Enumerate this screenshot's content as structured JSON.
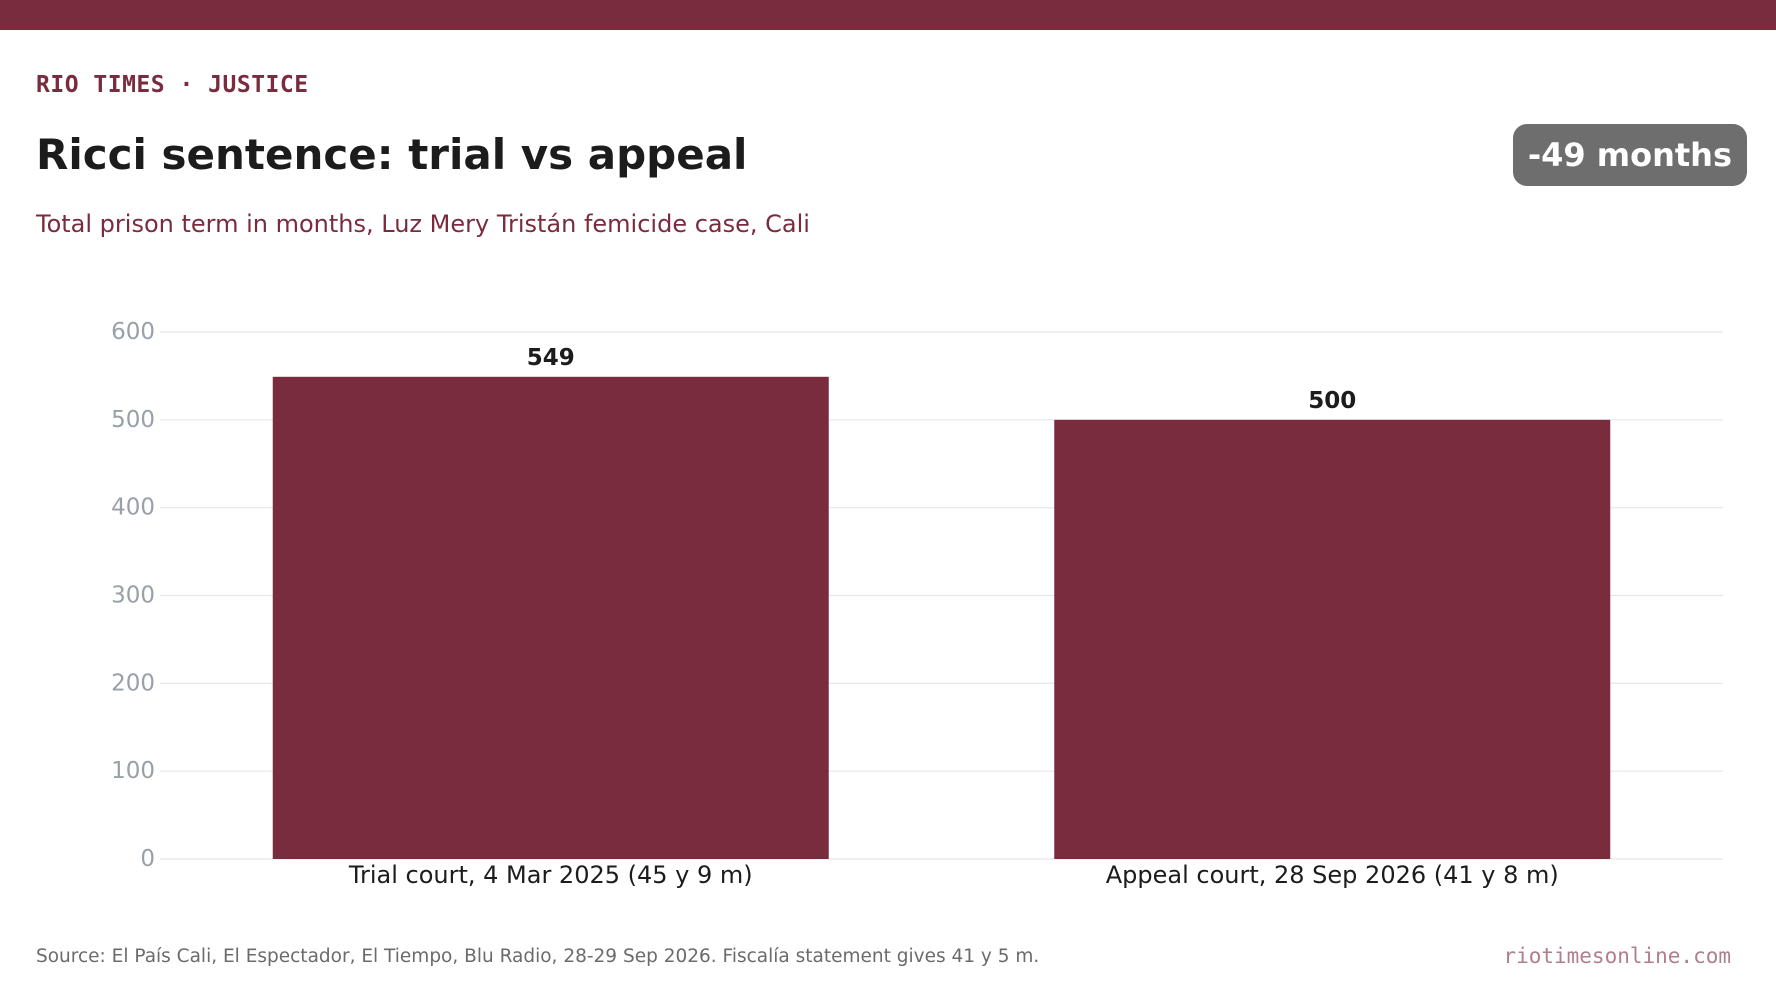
{
  "colors": {
    "brand": "#7a2c3f",
    "badge_bg": "#6e6e6e",
    "grid": "#e6e6e6",
    "tick_text": "#9aa0a8",
    "site_text": "#b07f8c"
  },
  "header": {
    "kicker": "RIO TIMES · JUSTICE",
    "title": "Ricci sentence: trial vs appeal",
    "subtitle": "Total prison term in months, Luz Mery Tristán femicide case, Cali",
    "badge": "-49 months"
  },
  "chart_data": {
    "type": "bar",
    "categories": [
      "Trial court, 4 Mar 2025 (45 y 9 m)",
      "Appeal court, 28 Sep 2026 (41 y 8 m)"
    ],
    "values": [
      549,
      500
    ],
    "data_labels": [
      "549",
      "500"
    ],
    "title": "",
    "xlabel": "",
    "ylabel": "",
    "ylim": [
      0,
      600
    ],
    "yticks": [
      0,
      100,
      200,
      300,
      400,
      500,
      600
    ],
    "grid": true,
    "legend": "none"
  },
  "footer": {
    "source": "Source: El País Cali, El Espectador, El Tiempo, Blu Radio, 28-29 Sep 2026. Fiscalía statement gives 41 y 5 m.",
    "site": "riotimesonline.com"
  }
}
